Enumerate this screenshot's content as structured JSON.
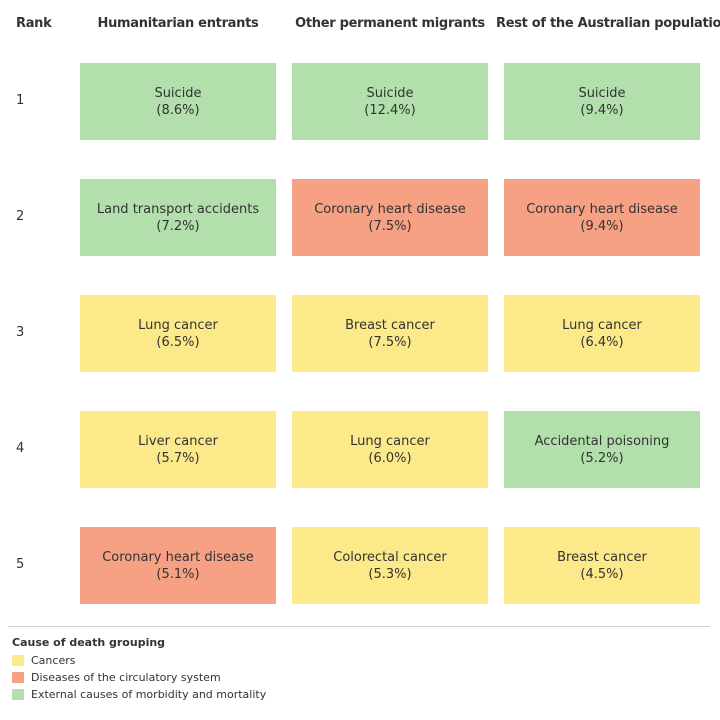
{
  "chart_data": {
    "type": "table",
    "rank_header": "Rank",
    "columns": [
      "Humanitarian entrants",
      "Other permanent migrants",
      "Rest of the Australian population"
    ],
    "rows": [
      {
        "rank": "1",
        "cells": [
          {
            "cause": "Suicide",
            "value": "(8.6%)",
            "group": "ext"
          },
          {
            "cause": "Suicide",
            "value": "(12.4%)",
            "group": "ext"
          },
          {
            "cause": "Suicide",
            "value": "(9.4%)",
            "group": "ext"
          }
        ]
      },
      {
        "rank": "2",
        "cells": [
          {
            "cause": "Land transport accidents",
            "value": "(7.2%)",
            "group": "ext"
          },
          {
            "cause": "Coronary heart disease",
            "value": "(7.5%)",
            "group": "circ"
          },
          {
            "cause": "Coronary heart disease",
            "value": "(9.4%)",
            "group": "circ"
          }
        ]
      },
      {
        "rank": "3",
        "cells": [
          {
            "cause": "Lung cancer",
            "value": "(6.5%)",
            "group": "cancers"
          },
          {
            "cause": "Breast cancer",
            "value": "(7.5%)",
            "group": "cancers"
          },
          {
            "cause": "Lung cancer",
            "value": "(6.4%)",
            "group": "cancers"
          }
        ]
      },
      {
        "rank": "4",
        "cells": [
          {
            "cause": "Liver cancer",
            "value": "(5.7%)",
            "group": "cancers"
          },
          {
            "cause": "Lung cancer",
            "value": "(6.0%)",
            "group": "cancers"
          },
          {
            "cause": "Accidental poisoning",
            "value": "(5.2%)",
            "group": "ext"
          }
        ]
      },
      {
        "rank": "5",
        "cells": [
          {
            "cause": "Coronary heart disease",
            "value": "(5.1%)",
            "group": "circ"
          },
          {
            "cause": "Colorectal cancer",
            "value": "(5.3%)",
            "group": "cancers"
          },
          {
            "cause": "Breast cancer",
            "value": "(4.5%)",
            "group": "cancers"
          }
        ]
      }
    ],
    "legend": {
      "title": "Cause of death grouping",
      "items": [
        {
          "key": "cancers",
          "label": "Cancers",
          "color": "#fce98a"
        },
        {
          "key": "circ",
          "label": "Diseases of the circulatory system",
          "color": "#f7a184"
        },
        {
          "key": "ext",
          "label": "External causes of morbidity and mortality",
          "color": "#b2dfac"
        }
      ]
    }
  }
}
